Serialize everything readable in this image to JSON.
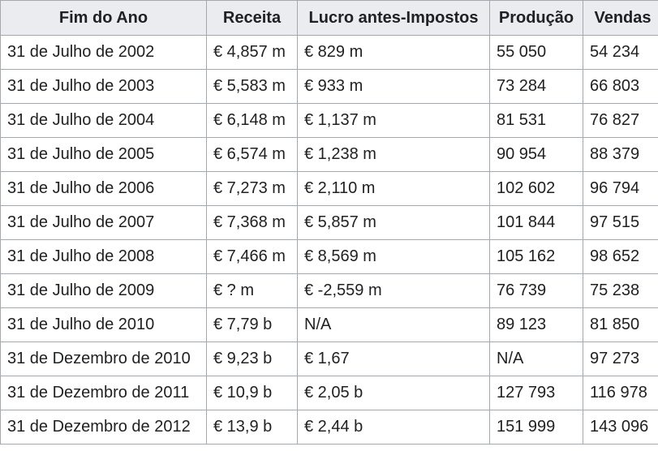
{
  "table": {
    "headers": [
      "Fim do Ano",
      "Receita",
      "Lucro antes-Impostos",
      "Produção",
      "Vendas"
    ],
    "rows": [
      [
        "31 de Julho de 2002",
        "€ 4,857 m",
        "€ 829 m",
        "55 050",
        "54 234"
      ],
      [
        "31 de Julho de 2003",
        "€ 5,583 m",
        "€ 933 m",
        "73 284",
        "66 803"
      ],
      [
        "31 de Julho de 2004",
        "€ 6,148 m",
        "€ 1,137 m",
        "81 531",
        "76 827"
      ],
      [
        "31 de Julho de 2005",
        "€ 6,574 m",
        "€ 1,238 m",
        "90 954",
        "88 379"
      ],
      [
        "31 de Julho de 2006",
        "€ 7,273 m",
        "€ 2,110 m",
        "102 602",
        "96 794"
      ],
      [
        "31 de Julho de 2007",
        "€ 7,368 m",
        "€ 5,857 m",
        "101 844",
        "97 515"
      ],
      [
        "31 de Julho de 2008",
        "€ 7,466 m",
        "€ 8,569 m",
        "105 162",
        "98 652"
      ],
      [
        "31 de Julho de 2009",
        "€ ? m",
        "€ -2,559 m",
        "76 739",
        "75 238"
      ],
      [
        "31 de Julho de 2010",
        "€ 7,79 b",
        "N/A",
        "89 123",
        "81 850"
      ],
      [
        "31 de Dezembro de 2010",
        "€ 9,23 b",
        "€ 1,67",
        "N/A",
        "97 273"
      ],
      [
        "31 de Dezembro de 2011",
        "€ 10,9 b",
        "€ 2,05 b",
        "127 793",
        "116 978"
      ],
      [
        "31 de Dezembro de 2012",
        "€ 13,9 b",
        "€ 2,44 b",
        "151 999",
        "143 096"
      ]
    ]
  }
}
